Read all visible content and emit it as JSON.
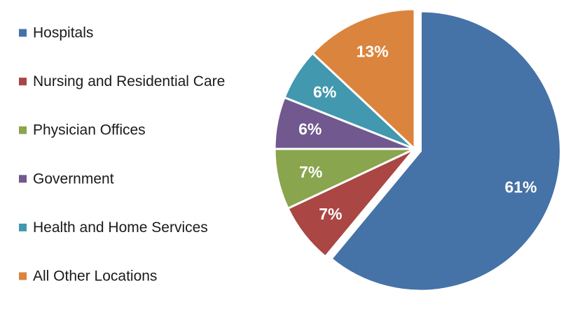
{
  "chart_data": {
    "type": "pie",
    "title": "",
    "legend_position": "left",
    "slices": [
      {
        "label": "Hospitals",
        "value": 61,
        "display": "61%",
        "color": "#4572A7",
        "exploded": true
      },
      {
        "label": "Nursing and Residential Care",
        "value": 7,
        "display": "7%",
        "color": "#AA4643",
        "exploded": false
      },
      {
        "label": "Physician Offices",
        "value": 7,
        "display": "7%",
        "color": "#89A54E",
        "exploded": false
      },
      {
        "label": "Government",
        "value": 6,
        "display": "6%",
        "color": "#71588F",
        "exploded": false
      },
      {
        "label": "Health and Home Services",
        "value": 6,
        "display": "6%",
        "color": "#4198AF",
        "exploded": false
      },
      {
        "label": "All Other Locations",
        "value": 13,
        "display": "13%",
        "color": "#DB843D",
        "exploded": false
      }
    ]
  }
}
